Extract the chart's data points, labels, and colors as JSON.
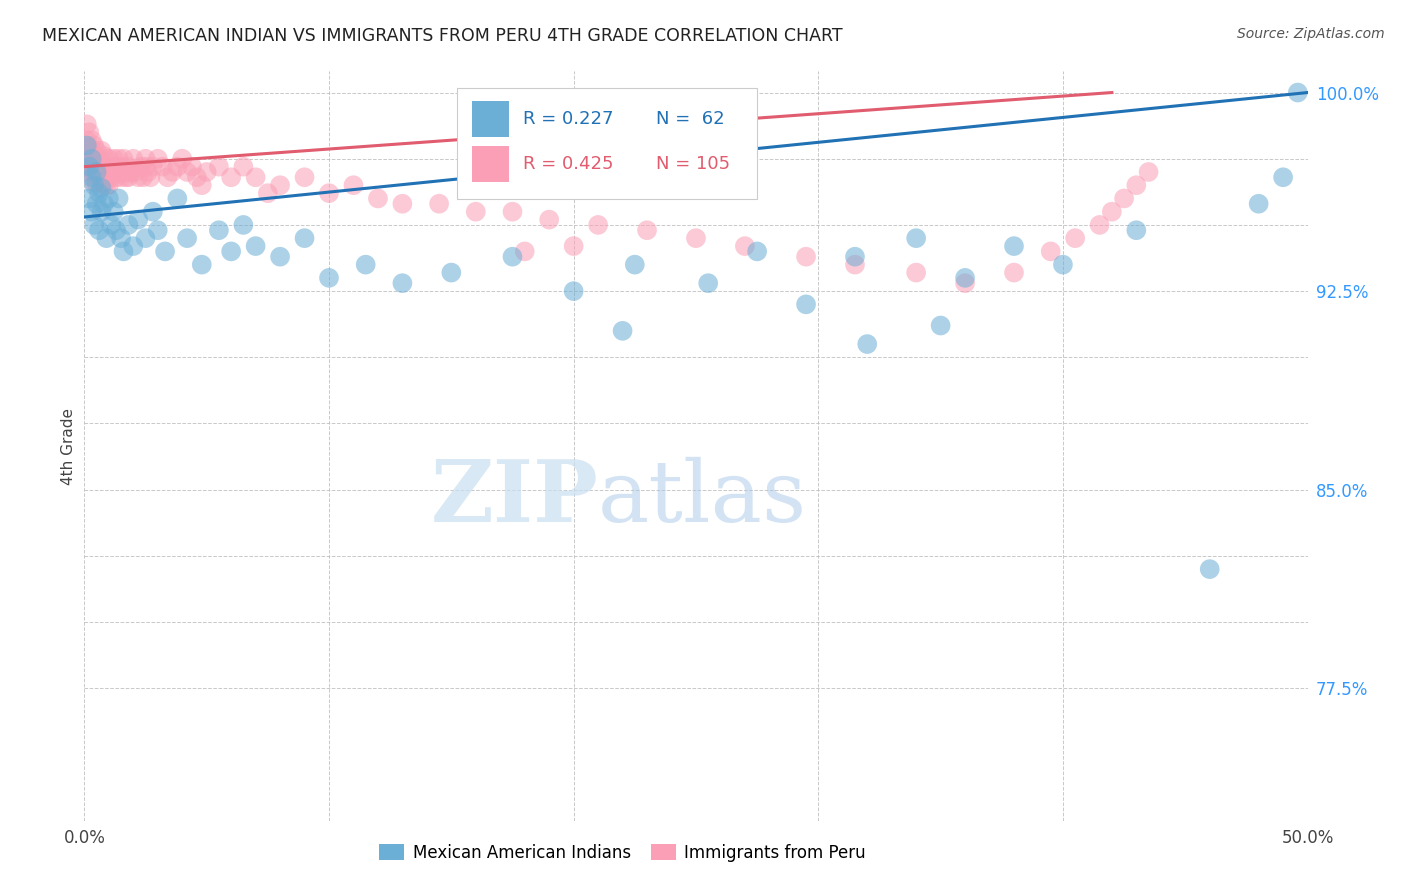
{
  "title": "MEXICAN AMERICAN INDIAN VS IMMIGRANTS FROM PERU 4TH GRADE CORRELATION CHART",
  "source": "Source: ZipAtlas.com",
  "ylabel": "4th Grade",
  "x_min": 0.0,
  "x_max": 0.5,
  "y_min": 0.725,
  "y_max": 1.008,
  "blue_R": 0.227,
  "blue_N": 62,
  "pink_R": 0.425,
  "pink_N": 105,
  "blue_color": "#6baed6",
  "pink_color": "#fa9fb5",
  "blue_line_color": "#2171b5",
  "pink_line_color": "#e05c6e",
  "watermark_zip": "ZIP",
  "watermark_atlas": "atlas",
  "blue_line_x": [
    0.0,
    0.5
  ],
  "blue_line_y": [
    0.953,
    1.0
  ],
  "pink_line_x": [
    0.0,
    0.42
  ],
  "pink_line_y": [
    0.972,
    1.0
  ],
  "blue_scatter_x": [
    0.001,
    0.002,
    0.002,
    0.003,
    0.003,
    0.003,
    0.004,
    0.004,
    0.005,
    0.005,
    0.006,
    0.006,
    0.007,
    0.007,
    0.008,
    0.009,
    0.01,
    0.011,
    0.012,
    0.013,
    0.014,
    0.015,
    0.016,
    0.018,
    0.02,
    0.022,
    0.025,
    0.028,
    0.03,
    0.033,
    0.038,
    0.042,
    0.048,
    0.055,
    0.06,
    0.065,
    0.07,
    0.08,
    0.09,
    0.1,
    0.115,
    0.13,
    0.15,
    0.175,
    0.2,
    0.225,
    0.255,
    0.275,
    0.295,
    0.315,
    0.34,
    0.36,
    0.38,
    0.4,
    0.43,
    0.46,
    0.48,
    0.49,
    0.496,
    0.22,
    0.32,
    0.35
  ],
  "blue_scatter_y": [
    0.98,
    0.972,
    0.96,
    0.968,
    0.975,
    0.955,
    0.965,
    0.95,
    0.97,
    0.958,
    0.962,
    0.948,
    0.955,
    0.964,
    0.958,
    0.945,
    0.96,
    0.95,
    0.955,
    0.948,
    0.96,
    0.945,
    0.94,
    0.95,
    0.942,
    0.952,
    0.945,
    0.955,
    0.948,
    0.94,
    0.96,
    0.945,
    0.935,
    0.948,
    0.94,
    0.95,
    0.942,
    0.938,
    0.945,
    0.93,
    0.935,
    0.928,
    0.932,
    0.938,
    0.925,
    0.935,
    0.928,
    0.94,
    0.92,
    0.938,
    0.945,
    0.93,
    0.942,
    0.935,
    0.948,
    0.82,
    0.958,
    0.968,
    1.0,
    0.91,
    0.905,
    0.912
  ],
  "pink_scatter_x": [
    0.001,
    0.001,
    0.001,
    0.001,
    0.002,
    0.002,
    0.002,
    0.002,
    0.003,
    0.003,
    0.003,
    0.003,
    0.004,
    0.004,
    0.004,
    0.004,
    0.005,
    0.005,
    0.005,
    0.005,
    0.006,
    0.006,
    0.006,
    0.007,
    0.007,
    0.007,
    0.008,
    0.008,
    0.008,
    0.009,
    0.009,
    0.009,
    0.01,
    0.01,
    0.01,
    0.011,
    0.011,
    0.012,
    0.012,
    0.013,
    0.013,
    0.014,
    0.014,
    0.015,
    0.015,
    0.016,
    0.016,
    0.017,
    0.018,
    0.018,
    0.019,
    0.02,
    0.021,
    0.022,
    0.023,
    0.024,
    0.025,
    0.026,
    0.027,
    0.028,
    0.03,
    0.032,
    0.034,
    0.036,
    0.038,
    0.04,
    0.042,
    0.044,
    0.046,
    0.05,
    0.055,
    0.06,
    0.065,
    0.07,
    0.08,
    0.09,
    0.1,
    0.11,
    0.12,
    0.13,
    0.145,
    0.16,
    0.175,
    0.19,
    0.21,
    0.23,
    0.25,
    0.27,
    0.295,
    0.315,
    0.34,
    0.36,
    0.38,
    0.395,
    0.405,
    0.415,
    0.42,
    0.425,
    0.43,
    0.435,
    0.18,
    0.2,
    0.075,
    0.048,
    0.025
  ],
  "pink_scatter_y": [
    0.988,
    0.982,
    0.978,
    0.972,
    0.985,
    0.979,
    0.975,
    0.97,
    0.982,
    0.978,
    0.975,
    0.97,
    0.98,
    0.975,
    0.97,
    0.966,
    0.978,
    0.975,
    0.97,
    0.966,
    0.975,
    0.972,
    0.968,
    0.978,
    0.972,
    0.966,
    0.976,
    0.97,
    0.965,
    0.972,
    0.968,
    0.965,
    0.975,
    0.97,
    0.965,
    0.972,
    0.968,
    0.975,
    0.97,
    0.972,
    0.968,
    0.975,
    0.97,
    0.972,
    0.968,
    0.975,
    0.97,
    0.968,
    0.972,
    0.968,
    0.97,
    0.975,
    0.97,
    0.968,
    0.972,
    0.968,
    0.975,
    0.97,
    0.968,
    0.972,
    0.975,
    0.972,
    0.968,
    0.97,
    0.972,
    0.975,
    0.97,
    0.972,
    0.968,
    0.97,
    0.972,
    0.968,
    0.972,
    0.968,
    0.965,
    0.968,
    0.962,
    0.965,
    0.96,
    0.958,
    0.958,
    0.955,
    0.955,
    0.952,
    0.95,
    0.948,
    0.945,
    0.942,
    0.938,
    0.935,
    0.932,
    0.928,
    0.932,
    0.94,
    0.945,
    0.95,
    0.955,
    0.96,
    0.965,
    0.97,
    0.94,
    0.942,
    0.962,
    0.965,
    0.972
  ]
}
